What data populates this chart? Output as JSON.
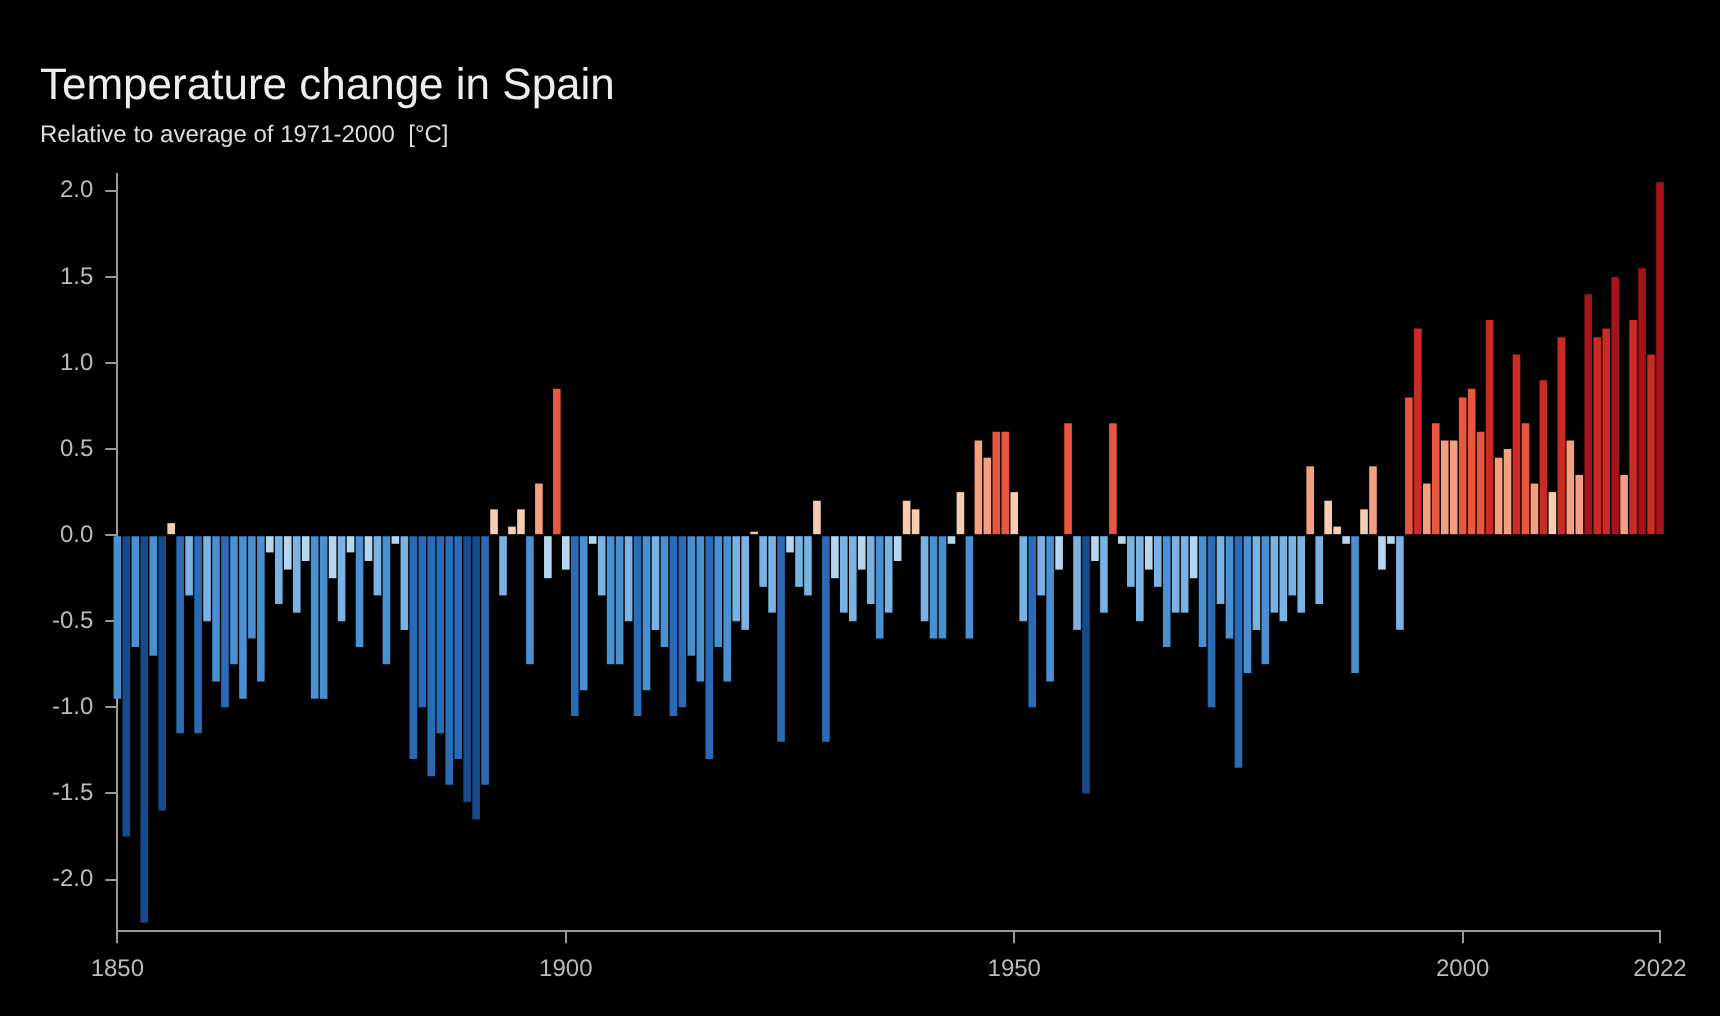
{
  "chart_data": {
    "type": "bar",
    "title": "Temperature change in Spain",
    "subtitle": "Relative to average of 1971-2000  [°C]",
    "x": [
      1850,
      1851,
      1852,
      1853,
      1854,
      1855,
      1856,
      1857,
      1858,
      1859,
      1860,
      1861,
      1862,
      1863,
      1864,
      1865,
      1866,
      1867,
      1868,
      1869,
      1870,
      1871,
      1872,
      1873,
      1874,
      1875,
      1876,
      1877,
      1878,
      1879,
      1880,
      1881,
      1882,
      1883,
      1884,
      1885,
      1886,
      1887,
      1888,
      1889,
      1890,
      1891,
      1892,
      1893,
      1894,
      1895,
      1896,
      1897,
      1898,
      1899,
      1900,
      1901,
      1902,
      1903,
      1904,
      1905,
      1906,
      1907,
      1908,
      1909,
      1910,
      1911,
      1912,
      1913,
      1914,
      1915,
      1916,
      1917,
      1918,
      1919,
      1920,
      1921,
      1922,
      1923,
      1924,
      1925,
      1926,
      1927,
      1928,
      1929,
      1930,
      1931,
      1932,
      1933,
      1934,
      1935,
      1936,
      1937,
      1938,
      1939,
      1940,
      1941,
      1942,
      1943,
      1944,
      1945,
      1946,
      1947,
      1948,
      1949,
      1950,
      1951,
      1952,
      1953,
      1954,
      1955,
      1956,
      1957,
      1958,
      1959,
      1960,
      1961,
      1962,
      1963,
      1964,
      1965,
      1966,
      1967,
      1968,
      1969,
      1970,
      1971,
      1972,
      1973,
      1974,
      1975,
      1976,
      1977,
      1978,
      1979,
      1980,
      1981,
      1982,
      1983,
      1984,
      1985,
      1986,
      1987,
      1988,
      1989,
      1990,
      1991,
      1992,
      1993,
      1994,
      1995,
      1996,
      1997,
      1998,
      1999,
      2000,
      2001,
      2002,
      2003,
      2004,
      2005,
      2006,
      2007,
      2008,
      2009,
      2010,
      2011,
      2012,
      2013,
      2014,
      2015,
      2016,
      2017,
      2018,
      2019,
      2020,
      2021,
      2022
    ],
    "values": [
      -0.95,
      -1.75,
      -0.65,
      -2.25,
      -0.7,
      -1.6,
      0.07,
      -1.15,
      -0.35,
      -1.15,
      -0.5,
      -0.85,
      -1.0,
      -0.75,
      -0.95,
      -0.6,
      -0.85,
      -0.1,
      -0.4,
      -0.2,
      -0.45,
      -0.15,
      -0.95,
      -0.95,
      -0.25,
      -0.5,
      -0.1,
      -0.65,
      -0.15,
      -0.35,
      -0.75,
      -0.05,
      -0.55,
      -1.3,
      -1.0,
      -1.4,
      -1.15,
      -1.45,
      -1.3,
      -1.55,
      -1.65,
      -1.45,
      0.15,
      -0.35,
      0.05,
      0.15,
      -0.75,
      0.3,
      -0.25,
      0.85,
      -0.2,
      -1.05,
      -0.9,
      -0.05,
      -0.35,
      -0.75,
      -0.75,
      -0.5,
      -1.05,
      -0.9,
      -0.55,
      -0.65,
      -1.05,
      -1.0,
      -0.7,
      -0.85,
      -1.3,
      -0.65,
      -0.85,
      -0.5,
      -0.55,
      0.02,
      -0.3,
      -0.45,
      -1.2,
      -0.1,
      -0.3,
      -0.35,
      0.2,
      -1.2,
      -0.25,
      -0.45,
      -0.5,
      -0.2,
      -0.4,
      -0.6,
      -0.45,
      -0.15,
      0.2,
      0.15,
      -0.5,
      -0.6,
      -0.6,
      -0.05,
      0.25,
      -0.6,
      0.55,
      0.45,
      0.6,
      0.6,
      0.25,
      -0.5,
      -1.0,
      -0.35,
      -0.85,
      -0.2,
      0.65,
      -0.55,
      -1.5,
      -0.15,
      -0.45,
      0.65,
      -0.05,
      -0.3,
      -0.5,
      -0.2,
      -0.3,
      -0.65,
      -0.45,
      -0.45,
      -0.25,
      -0.65,
      -1.0,
      -0.4,
      -0.6,
      -1.35,
      -0.8,
      -0.55,
      -0.75,
      -0.45,
      -0.5,
      -0.35,
      -0.45,
      0.4,
      -0.4,
      0.2,
      0.05,
      -0.05,
      -0.8,
      0.15,
      0.4,
      -0.2,
      -0.05,
      -0.55,
      0.8,
      1.2,
      0.3,
      0.65,
      0.55,
      0.55,
      0.8,
      0.85,
      0.6,
      1.25,
      0.45,
      0.5,
      1.05,
      0.65,
      0.3,
      0.9,
      0.25,
      1.15,
      0.55,
      0.35,
      1.4,
      1.15,
      1.2,
      1.5,
      0.35,
      1.25,
      1.55,
      1.05,
      2.05
    ],
    "colors": [
      "#4a8fd0",
      "#174a8a",
      "#4a8fd0",
      "#174a8a",
      "#4a8fd0",
      "#174a8a",
      "#f6cdb0",
      "#2a6bb5",
      "#7ab3e3",
      "#2a6bb5",
      "#7ab3e3",
      "#4a8fd0",
      "#2a6bb5",
      "#4a8fd0",
      "#4a8fd0",
      "#4a8fd0",
      "#4a8fd0",
      "#b4d6ee",
      "#7ab3e3",
      "#b4d6ee",
      "#7ab3e3",
      "#b4d6ee",
      "#4a8fd0",
      "#4a8fd0",
      "#b4d6ee",
      "#7ab3e3",
      "#b4d6ee",
      "#4a8fd0",
      "#b4d6ee",
      "#7ab3e3",
      "#4a8fd0",
      "#b4d6ee",
      "#7ab3e3",
      "#2a6bb5",
      "#2a6bb5",
      "#2a6bb5",
      "#2a6bb5",
      "#2a6bb5",
      "#2a6bb5",
      "#174a8a",
      "#174a8a",
      "#2a6bb5",
      "#f6cdb0",
      "#7ab3e3",
      "#f6cdb0",
      "#f6cdb0",
      "#4a8fd0",
      "#f4a07e",
      "#b4d6ee",
      "#e9573f",
      "#b4d6ee",
      "#2a6bb5",
      "#4a8fd0",
      "#b4d6ee",
      "#7ab3e3",
      "#4a8fd0",
      "#4a8fd0",
      "#7ab3e3",
      "#2a6bb5",
      "#4a8fd0",
      "#7ab3e3",
      "#4a8fd0",
      "#2a6bb5",
      "#2a6bb5",
      "#4a8fd0",
      "#4a8fd0",
      "#2a6bb5",
      "#4a8fd0",
      "#4a8fd0",
      "#7ab3e3",
      "#7ab3e3",
      "#f6cdb0",
      "#7ab3e3",
      "#7ab3e3",
      "#2a6bb5",
      "#b4d6ee",
      "#7ab3e3",
      "#7ab3e3",
      "#f6cdb0",
      "#2a6bb5",
      "#b4d6ee",
      "#7ab3e3",
      "#7ab3e3",
      "#b4d6ee",
      "#7ab3e3",
      "#4a8fd0",
      "#7ab3e3",
      "#b4d6ee",
      "#f6cdb0",
      "#f6cdb0",
      "#7ab3e3",
      "#4a8fd0",
      "#4a8fd0",
      "#b4d6ee",
      "#f6cdb0",
      "#4a8fd0",
      "#f4a07e",
      "#f4a07e",
      "#e9573f",
      "#e9573f",
      "#f6cdb0",
      "#7ab3e3",
      "#2a6bb5",
      "#7ab3e3",
      "#4a8fd0",
      "#b4d6ee",
      "#e9573f",
      "#7ab3e3",
      "#174a8a",
      "#b4d6ee",
      "#7ab3e3",
      "#e9573f",
      "#b4d6ee",
      "#7ab3e3",
      "#7ab3e3",
      "#b4d6ee",
      "#7ab3e3",
      "#4a8fd0",
      "#7ab3e3",
      "#7ab3e3",
      "#b4d6ee",
      "#4a8fd0",
      "#2a6bb5",
      "#7ab3e3",
      "#4a8fd0",
      "#2a6bb5",
      "#4a8fd0",
      "#7ab3e3",
      "#4a8fd0",
      "#7ab3e3",
      "#7ab3e3",
      "#7ab3e3",
      "#7ab3e3",
      "#f4a07e",
      "#7ab3e3",
      "#f6cdb0",
      "#f6cdb0",
      "#b4d6ee",
      "#4a8fd0",
      "#f6cdb0",
      "#f4a07e",
      "#b4d6ee",
      "#b4d6ee",
      "#7ab3e3",
      "#e9573f",
      "#cc2a24",
      "#f4a07e",
      "#e9573f",
      "#f4a07e",
      "#f4a07e",
      "#e9573f",
      "#e9573f",
      "#e9573f",
      "#cc2a24",
      "#f4a07e",
      "#f4a07e",
      "#cc2a24",
      "#e9573f",
      "#f4a07e",
      "#cc2a24",
      "#f6cdb0",
      "#cc2a24",
      "#f4a07e",
      "#f4a07e",
      "#a8121a",
      "#cc2a24",
      "#cc2a24",
      "#a8121a",
      "#f4a07e",
      "#cc2a24",
      "#a8121a",
      "#cc2a24",
      "#a8121a"
    ],
    "xlim": [
      1850,
      2022
    ],
    "xticks": [
      1850,
      1900,
      1950,
      2000,
      2022
    ],
    "ylim": [
      -2.3,
      2.1
    ],
    "yticks": [
      {
        "value": -2,
        "label": "-2.0"
      },
      -1.5,
      {
        "value": -1,
        "label": "-1.0"
      },
      -0.5,
      {
        "value": 0,
        "label": "0.0"
      },
      0.5,
      {
        "value": 1,
        "label": "1.0"
      },
      1.5,
      {
        "value": 2,
        "label": "2.0"
      }
    ],
    "grid": false,
    "legend": false
  }
}
